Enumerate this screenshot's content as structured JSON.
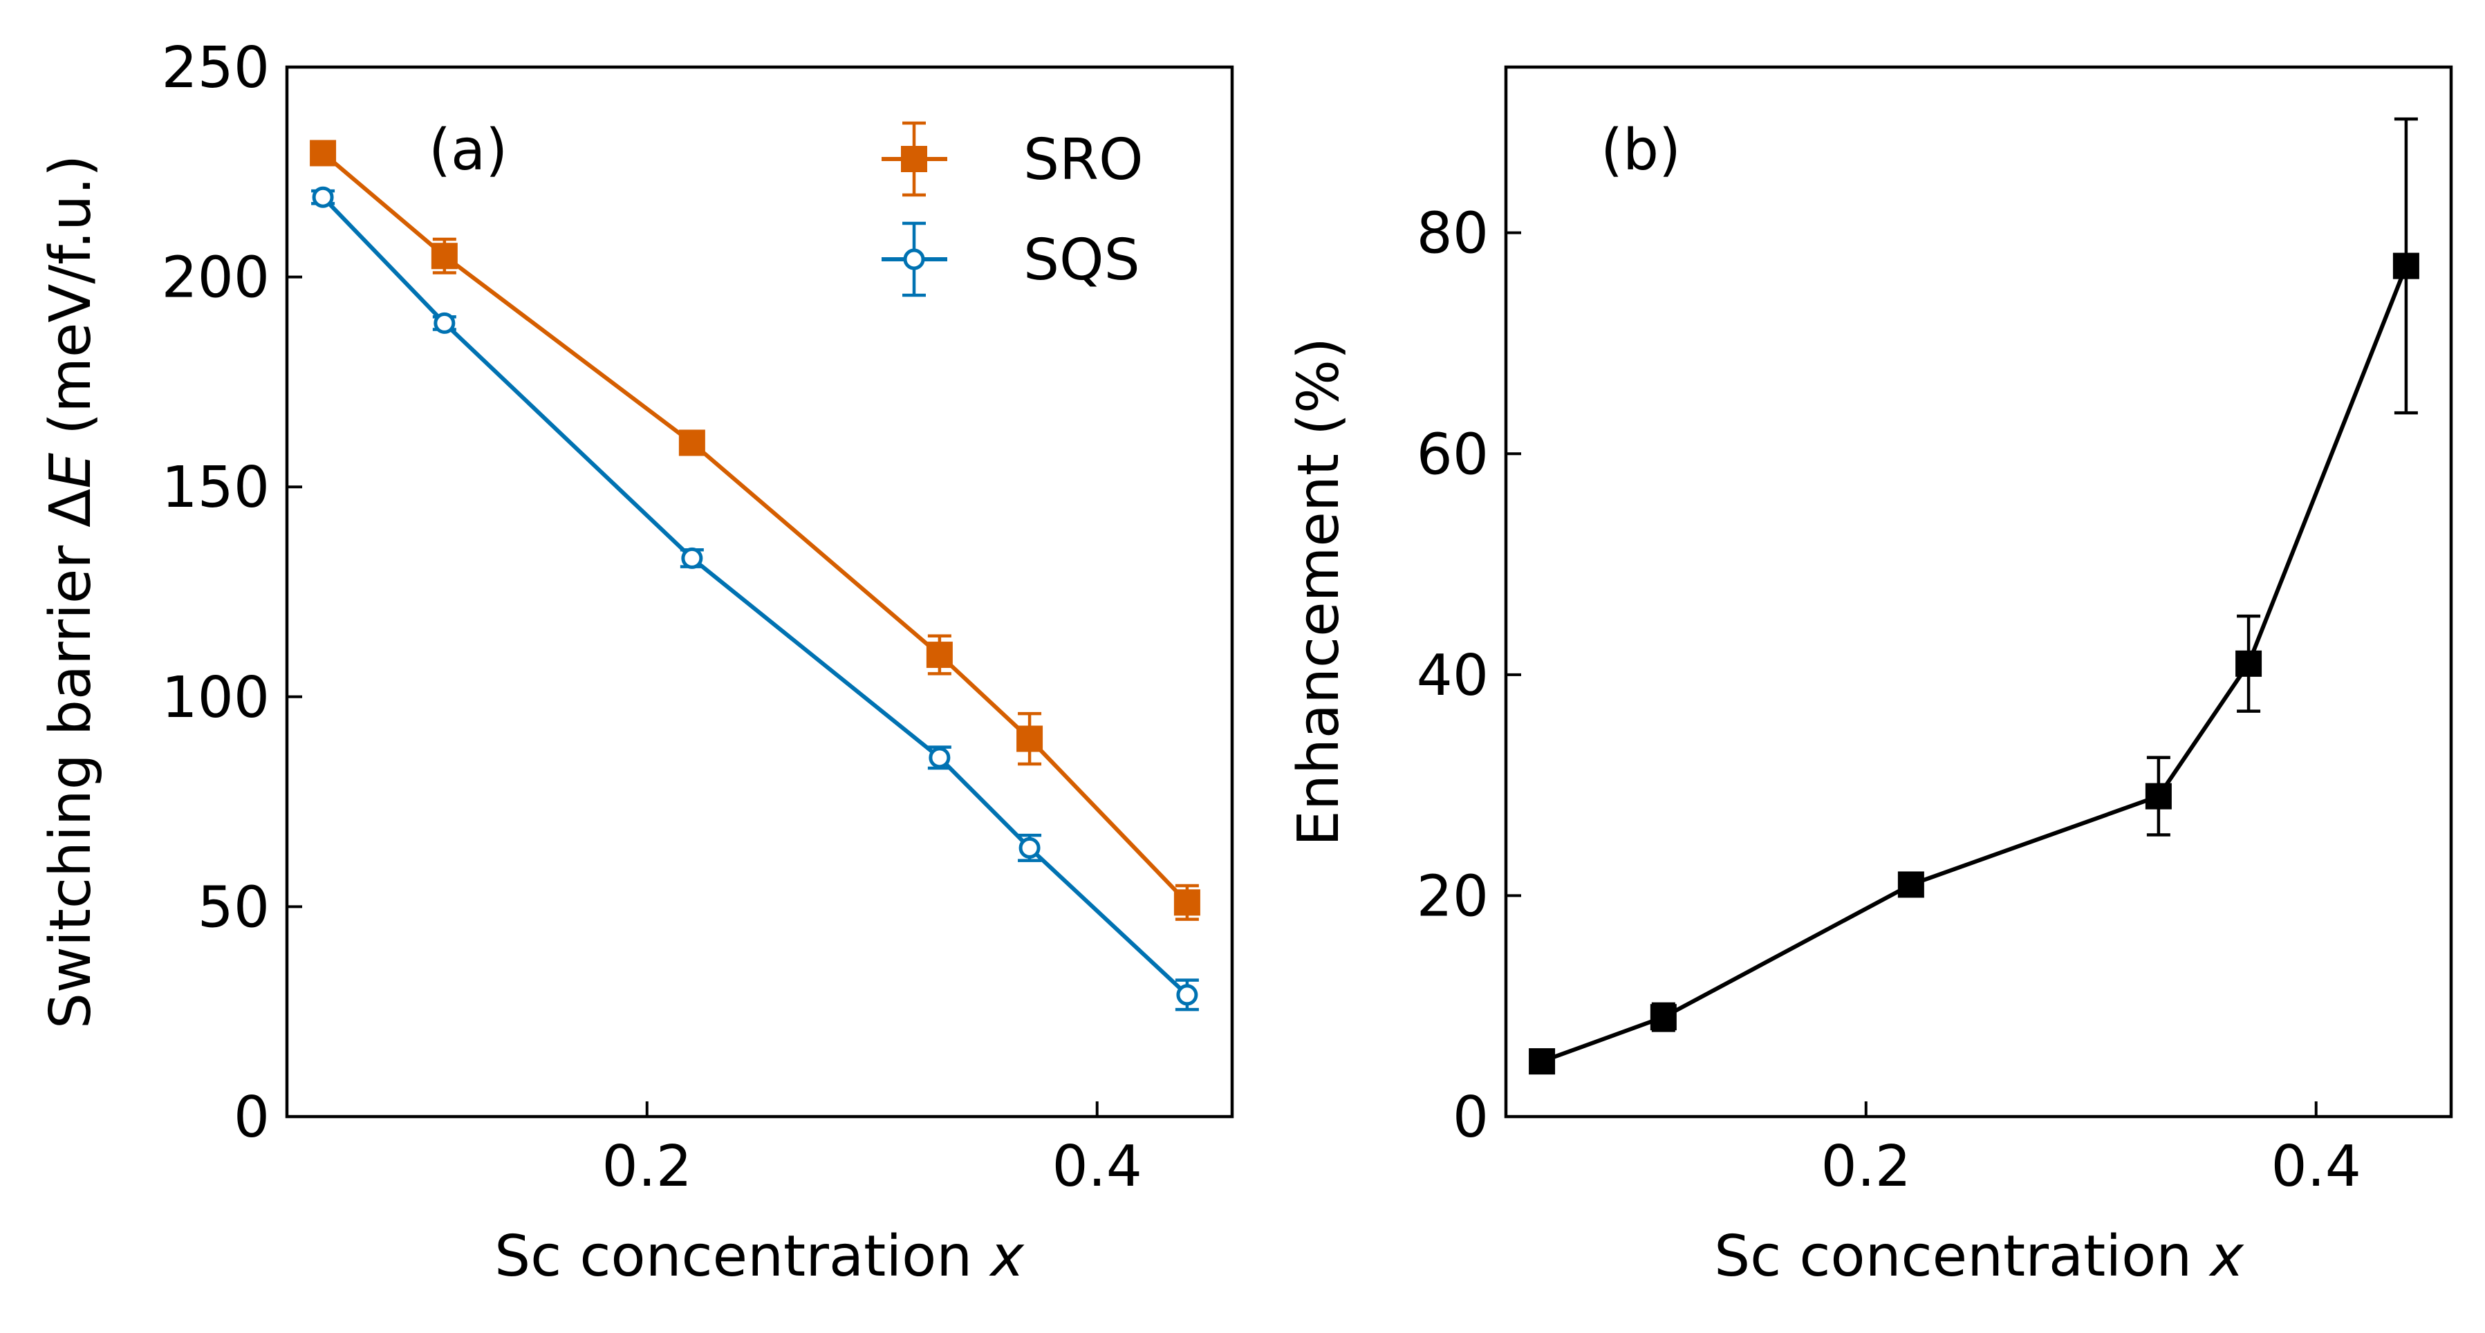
{
  "chart_data": [
    {
      "type": "line",
      "panel_label": "(a)",
      "xlabel": "Sc concentration",
      "xlabel_var": "x",
      "ylabel": "Switching barrier Δ",
      "ylabel_var": "E",
      "ylabel_unit": " (meV/f.u.)",
      "xlim": [
        0.04,
        0.46
      ],
      "ylim": [
        0,
        250
      ],
      "xticks": [
        0.2,
        0.4
      ],
      "xtick_labels": [
        "0.2",
        "0.4"
      ],
      "yticks": [
        0,
        50,
        100,
        150,
        200,
        250
      ],
      "ytick_labels": [
        "0",
        "50",
        "100",
        "150",
        "200",
        "250"
      ],
      "legend_position": "top-right",
      "series": [
        {
          "name": "SRO",
          "color": "#D55E00",
          "marker": "filled-square",
          "x": [
            0.056,
            0.11,
            0.22,
            0.33,
            0.37,
            0.44
          ],
          "y": [
            229.5,
            205,
            160.5,
            110,
            90,
            51
          ],
          "yerr": [
            2,
            4,
            2,
            4.5,
            6,
            4
          ]
        },
        {
          "name": "SQS",
          "color": "#0072B2",
          "marker": "open-circle",
          "x": [
            0.056,
            0.11,
            0.22,
            0.33,
            0.37,
            0.44
          ],
          "y": [
            219,
            189,
            133,
            85.5,
            64,
            29
          ],
          "yerr": [
            1.5,
            1.5,
            2,
            2.5,
            3,
            3.5
          ]
        }
      ]
    },
    {
      "type": "line",
      "panel_label": "(b)",
      "xlabel": "Sc concentration",
      "xlabel_var": "x",
      "ylabel": "Enhancement (%)",
      "xlim": [
        0.04,
        0.46
      ],
      "ylim": [
        0,
        95
      ],
      "xticks": [
        0.2,
        0.4
      ],
      "xtick_labels": [
        "0.2",
        "0.4"
      ],
      "yticks": [
        0,
        20,
        40,
        60,
        80
      ],
      "ytick_labels": [
        "0",
        "20",
        "40",
        "60",
        "80"
      ],
      "series": [
        {
          "color": "#000000",
          "marker": "filled-square",
          "x": [
            0.056,
            0.11,
            0.22,
            0.33,
            0.37,
            0.44
          ],
          "y": [
            5,
            9,
            21,
            29,
            41,
            77
          ],
          "yerr": [
            1,
            1.2,
            1,
            3.5,
            4.3,
            13.3
          ]
        }
      ]
    }
  ]
}
